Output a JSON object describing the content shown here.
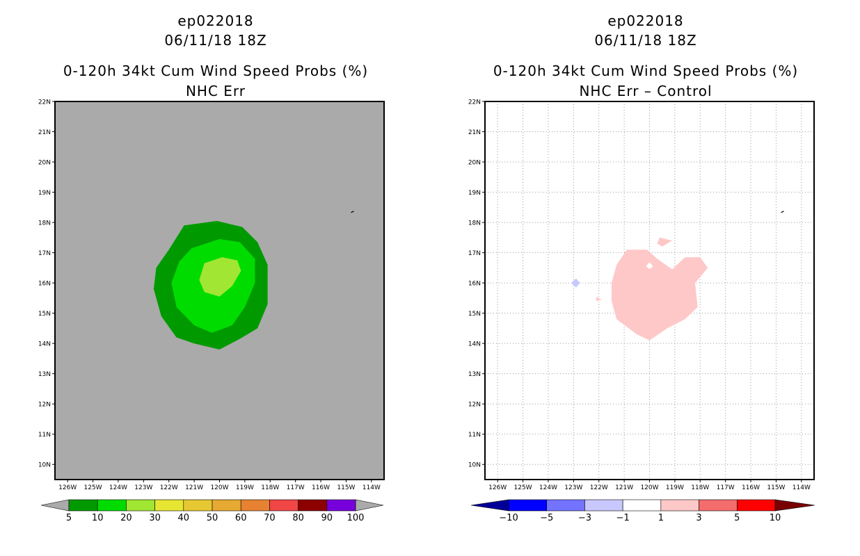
{
  "panels": [
    {
      "storm_id": "ep022018",
      "datetime": "06/11/18 18Z",
      "title": "0-120h 34kt Cum Wind Speed Probs (%)",
      "subtitle": "NHC Err",
      "background": "#aaaaaa",
      "grid": false,
      "colorbar": {
        "colors": [
          "#009a00",
          "#00dc00",
          "#a0e632",
          "#e6e632",
          "#e6c832",
          "#e6aa32",
          "#e68232",
          "#f04646",
          "#8c0000",
          "#7800dc"
        ],
        "ends": [
          "#aaaaaa",
          "#aaaaaa"
        ],
        "labels": [
          "5",
          "10",
          "20",
          "30",
          "40",
          "50",
          "60",
          "70",
          "80",
          "90",
          "100"
        ]
      }
    },
    {
      "storm_id": "ep022018",
      "datetime": "06/11/18 18Z",
      "title": "0-120h 34kt Cum Wind Speed Probs (%)",
      "subtitle": "NHC Err – Control",
      "background": "#ffffff",
      "grid": true,
      "colorbar": {
        "colors": [
          "#0000ff",
          "#7373ff",
          "#c8c8ff",
          "#ffffff",
          "#ffc8c8",
          "#f46c6c",
          "#ff0000"
        ],
        "ends": [
          "#000096",
          "#780000"
        ],
        "labels": [
          "−10",
          "−5",
          "−3",
          "−1",
          "1",
          "3",
          "5",
          "10"
        ]
      }
    }
  ],
  "chart_data": [
    {
      "type": "contour-map",
      "title": "0-120h 34kt Cum Wind Speed Probs (%)",
      "subtitle": "NHC Err",
      "storm": "ep022018",
      "valid": "06/11/18 18Z",
      "xlim": [
        -126.5,
        -113.5
      ],
      "ylim": [
        9.5,
        22
      ],
      "xticks": [
        -126,
        -125,
        -124,
        -123,
        -122,
        -121,
        -120,
        -119,
        -118,
        -117,
        -116,
        -115,
        -114
      ],
      "xticklabels": [
        "126W",
        "125W",
        "124W",
        "123W",
        "122W",
        "121W",
        "120W",
        "119W",
        "118W",
        "117W",
        "116W",
        "115W",
        "114W"
      ],
      "yticks": [
        10,
        11,
        12,
        13,
        14,
        15,
        16,
        17,
        18,
        19,
        20,
        21,
        22
      ],
      "yticklabels": [
        "10N",
        "11N",
        "12N",
        "13N",
        "14N",
        "15N",
        "16N",
        "17N",
        "18N",
        "19N",
        "20N",
        "21N",
        "22N"
      ],
      "contours": [
        {
          "level": 5,
          "color": "#009a00",
          "polygon": [
            [
              -121.4,
              17.9
            ],
            [
              -120.1,
              18.05
            ],
            [
              -119.1,
              17.85
            ],
            [
              -118.5,
              17.35
            ],
            [
              -118.1,
              16.6
            ],
            [
              -118.1,
              15.3
            ],
            [
              -118.5,
              14.5
            ],
            [
              -119.2,
              14.15
            ],
            [
              -120.0,
              13.8
            ],
            [
              -121.0,
              14.0
            ],
            [
              -121.7,
              14.2
            ],
            [
              -122.3,
              14.9
            ],
            [
              -122.6,
              15.8
            ],
            [
              -122.5,
              16.5
            ],
            [
              -122.0,
              17.1
            ]
          ]
        },
        {
          "level": 10,
          "color": "#00dc00",
          "polygon": [
            [
              -121.1,
              17.15
            ],
            [
              -120.0,
              17.45
            ],
            [
              -119.2,
              17.35
            ],
            [
              -118.6,
              16.8
            ],
            [
              -118.6,
              16.0
            ],
            [
              -119.0,
              15.2
            ],
            [
              -119.5,
              14.6
            ],
            [
              -120.3,
              14.35
            ],
            [
              -121.0,
              14.6
            ],
            [
              -121.7,
              15.2
            ],
            [
              -121.9,
              16.0
            ],
            [
              -121.6,
              16.7
            ]
          ]
        },
        {
          "level": 20,
          "color": "#a0e632",
          "polygon": [
            [
              -120.6,
              16.65
            ],
            [
              -119.9,
              16.85
            ],
            [
              -119.3,
              16.75
            ],
            [
              -119.15,
              16.4
            ],
            [
              -119.5,
              15.9
            ],
            [
              -120.0,
              15.55
            ],
            [
              -120.6,
              15.7
            ],
            [
              -120.8,
              16.1
            ]
          ]
        }
      ],
      "colorbar_levels": [
        5,
        10,
        20,
        30,
        40,
        50,
        60,
        70,
        80,
        90,
        100
      ]
    },
    {
      "type": "contour-map",
      "title": "0-120h 34kt Cum Wind Speed Probs (%)",
      "subtitle": "NHC Err – Control",
      "storm": "ep022018",
      "valid": "06/11/18 18Z",
      "xlim": [
        -126.5,
        -113.5
      ],
      "ylim": [
        9.5,
        22
      ],
      "xticks": [
        -126,
        -125,
        -124,
        -123,
        -122,
        -121,
        -120,
        -119,
        -118,
        -117,
        -116,
        -115,
        -114
      ],
      "xticklabels": [
        "126W",
        "125W",
        "124W",
        "123W",
        "122W",
        "121W",
        "120W",
        "119W",
        "118W",
        "117W",
        "116W",
        "115W",
        "114W"
      ],
      "yticks": [
        10,
        11,
        12,
        13,
        14,
        15,
        16,
        17,
        18,
        19,
        20,
        21,
        22
      ],
      "yticklabels": [
        "10N",
        "11N",
        "12N",
        "13N",
        "14N",
        "15N",
        "16N",
        "17N",
        "18N",
        "19N",
        "20N",
        "21N",
        "22N"
      ],
      "contours": [
        {
          "level": 1,
          "color": "#ffc8c8",
          "polygon": [
            [
              -120.9,
              17.1
            ],
            [
              -120.1,
              17.1
            ],
            [
              -119.7,
              16.8
            ],
            [
              -119.1,
              16.45
            ],
            [
              -118.6,
              16.85
            ],
            [
              -118.0,
              16.85
            ],
            [
              -117.7,
              16.5
            ],
            [
              -118.2,
              16.0
            ],
            [
              -118.1,
              15.2
            ],
            [
              -118.6,
              14.8
            ],
            [
              -119.3,
              14.5
            ],
            [
              -120.0,
              14.1
            ],
            [
              -120.5,
              14.3
            ],
            [
              -121.3,
              14.8
            ],
            [
              -121.5,
              15.4
            ],
            [
              -121.5,
              16.0
            ],
            [
              -121.3,
              16.6
            ]
          ]
        },
        {
          "level": 1,
          "color": "#ffc8c8",
          "polygon": [
            [
              -119.6,
              17.5
            ],
            [
              -119.1,
              17.4
            ],
            [
              -119.5,
              17.2
            ],
            [
              -119.7,
              17.3
            ]
          ]
        },
        {
          "level": 1,
          "color": "#ffc8c8",
          "polygon": [
            [
              -122.1,
              15.55
            ],
            [
              -121.9,
              15.45
            ],
            [
              -122.1,
              15.4
            ]
          ]
        },
        {
          "level": -1,
          "color": "#c8c8ff",
          "polygon": [
            [
              -123.1,
              16.0
            ],
            [
              -122.9,
              16.15
            ],
            [
              -122.75,
              16.0
            ],
            [
              -122.9,
              15.85
            ]
          ]
        }
      ],
      "colorbar_levels": [
        -10,
        -5,
        -3,
        -1,
        1,
        3,
        5,
        10
      ]
    }
  ]
}
